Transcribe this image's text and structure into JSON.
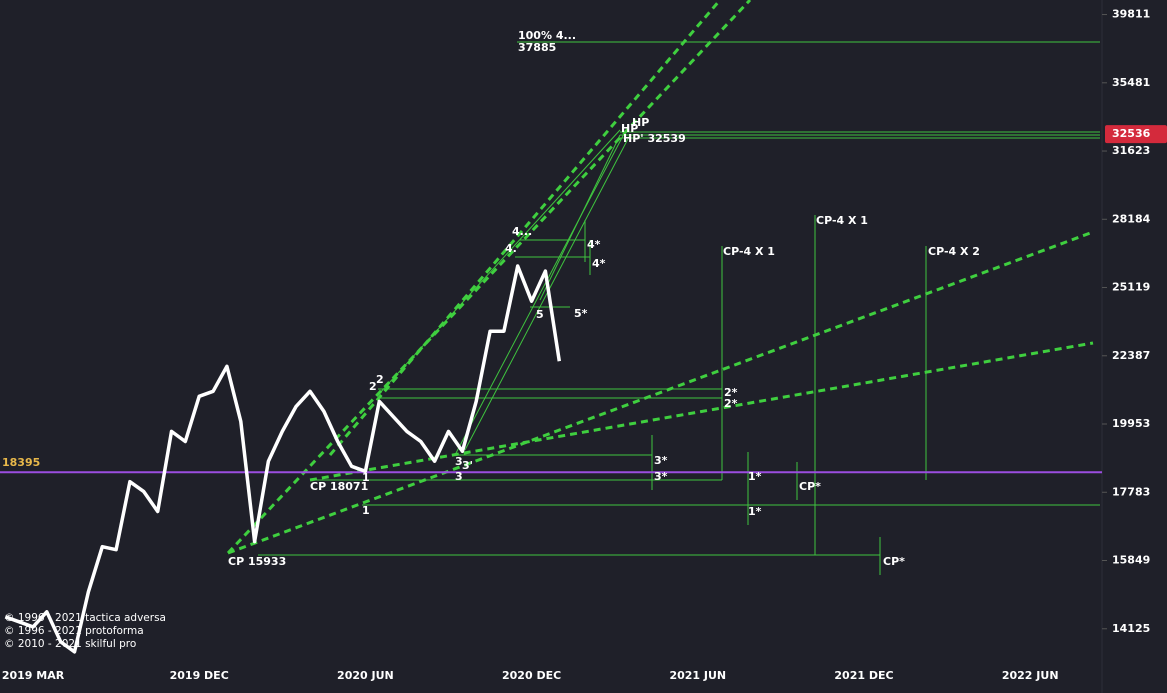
{
  "chart_data": {
    "type": "line",
    "categories": [
      null,
      null,
      "2019 MAR",
      null,
      null,
      null,
      null,
      null,
      null,
      null,
      null,
      null,
      null,
      null,
      "2019 DEC",
      null,
      null,
      null,
      null,
      null,
      null,
      null,
      null,
      null,
      null,
      null,
      "2020 JUN",
      null,
      null,
      null,
      null,
      null,
      null,
      null,
      null,
      null,
      null,
      null,
      "2020 DEC",
      null,
      null,
      null,
      null,
      null,
      null,
      null,
      null,
      null,
      null,
      null,
      "2021 JUN",
      null,
      null,
      null,
      null,
      null,
      null,
      null,
      null,
      null,
      null,
      null,
      "2021 DEC",
      null,
      null,
      null,
      null,
      null,
      null,
      null,
      null,
      null,
      null,
      null,
      "2022 JUN",
      null,
      null,
      null,
      null,
      null
    ],
    "series": [
      {
        "name": null,
        "color": "#ffffff",
        "values": [
          14412,
          14293,
          14170,
          14535,
          13818,
          13584,
          15033,
          16223,
          16140,
          18102,
          17804,
          17214,
          19707,
          19372,
          20909,
          21084,
          21992,
          20041,
          16362,
          18739,
          19707,
          20555,
          21084,
          20383,
          19372,
          18580,
          18424,
          20730,
          20212,
          19707,
          19372,
          18739,
          19707,
          19054,
          20730,
          23333,
          23333,
          26048,
          24548,
          25826,
          22183,
          null,
          null,
          null,
          null,
          null,
          null,
          null,
          null,
          null,
          null,
          null,
          null,
          null,
          null,
          null,
          null,
          null,
          null,
          null,
          null,
          null,
          null,
          null,
          null,
          null,
          null,
          null,
          null,
          null,
          null,
          null,
          null,
          null,
          null,
          null,
          null,
          null,
          null,
          null
        ]
      }
    ],
    "ylim": [
      13400,
      40800
    ],
    "log_scale": true,
    "yticks": [
      39811,
      35481,
      31623,
      28184,
      25119,
      22387,
      19953,
      17783,
      15849,
      14125
    ],
    "last_price": 32536,
    "last_price_color": "#d42a3c",
    "reference_level": 18395,
    "reference_color": "#9b4de0",
    "annotations": [
      "100%  4...",
      "37885",
      "HP",
      "HP",
      "HP' 32539",
      "4...",
      "4.",
      "4*",
      "4*",
      "5",
      "5*",
      "2",
      "2",
      "2*",
      "2*",
      "3",
      "3'",
      "3",
      "3*",
      "3*",
      "CP 18071",
      "1",
      "1",
      "1*",
      "1*",
      "CP*",
      "CP 15933",
      "CP*",
      "CP-4 X 1",
      "CP-4 X 1",
      "CP-4 X 2"
    ],
    "copyright": [
      "© 1996 - 2021 tactica adversa",
      "© 1996 - 2021 protoforma",
      "© 2010 - 2021 skilful pro"
    ]
  }
}
